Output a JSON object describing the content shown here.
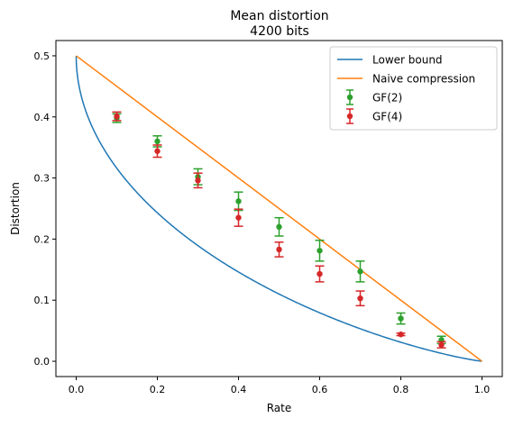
{
  "chart_data": {
    "type": "line",
    "title": "Mean distortion",
    "subtitle": "4200 bits",
    "xlabel": "Rate",
    "ylabel": "Distortion",
    "xlim": [
      -0.05,
      1.05
    ],
    "ylim": [
      -0.025,
      0.525
    ],
    "xticks": [
      0.0,
      0.2,
      0.4,
      0.6,
      0.8,
      1.0
    ],
    "xtick_labels": [
      "0.0",
      "0.2",
      "0.4",
      "0.6",
      "0.8",
      "1.0"
    ],
    "yticks": [
      0.0,
      0.1,
      0.2,
      0.3,
      0.4,
      0.5
    ],
    "ytick_labels": [
      "0.0",
      "0.1",
      "0.2",
      "0.3",
      "0.4",
      "0.5"
    ],
    "grid": false,
    "legend_position": "top-right",
    "series": [
      {
        "name": "Lower bound",
        "kind": "line",
        "color": "#1f77b4",
        "formula": "rate = 1 - binary_entropy(distortion)"
      },
      {
        "name": "Naive compression",
        "kind": "line",
        "color": "#ff7f0e",
        "x": [
          0.0,
          1.0
        ],
        "y": [
          0.5,
          0.0
        ]
      },
      {
        "name": "GF(2)",
        "kind": "errorbar",
        "color": "#2ca02c",
        "x": [
          0.1,
          0.2,
          0.3,
          0.4,
          0.5,
          0.6,
          0.7,
          0.8,
          0.9
        ],
        "y": [
          0.398,
          0.36,
          0.302,
          0.262,
          0.22,
          0.181,
          0.147,
          0.07,
          0.035
        ],
        "err": [
          0.007,
          0.009,
          0.013,
          0.015,
          0.015,
          0.017,
          0.017,
          0.009,
          0.006
        ]
      },
      {
        "name": "GF(4)",
        "kind": "errorbar",
        "color": "#d62728",
        "x": [
          0.1,
          0.2,
          0.3,
          0.4,
          0.5,
          0.6,
          0.7,
          0.8,
          0.9
        ],
        "y": [
          0.401,
          0.344,
          0.296,
          0.235,
          0.183,
          0.143,
          0.103,
          0.044,
          0.027
        ],
        "err": [
          0.007,
          0.01,
          0.012,
          0.014,
          0.012,
          0.013,
          0.012,
          0.002,
          0.005
        ]
      }
    ]
  }
}
